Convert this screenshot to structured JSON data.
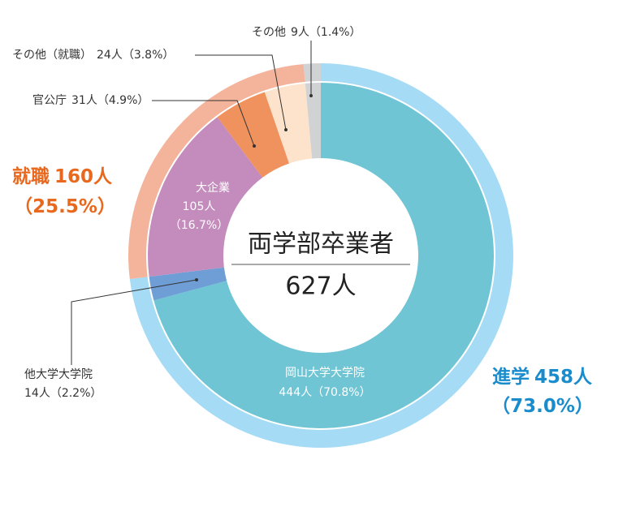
{
  "chart_data": {
    "type": "double-donut",
    "center_title": "両学部卒業者",
    "center_label": "627人",
    "outer": {
      "names": [
        "進学",
        "就職",
        "その他"
      ],
      "values": [
        458,
        160,
        9
      ],
      "value_labels": [
        "458人",
        "160人",
        "9人"
      ],
      "percents": [
        73.0,
        25.5,
        1.4
      ],
      "percent_labels": [
        "（73.0%）",
        "（25.5%）",
        "（1.4%）"
      ],
      "colors": [
        "#a6dbf5",
        "#f4b49c",
        "#d0d2d4"
      ]
    },
    "inner": {
      "names": [
        "岡山大学大学院",
        "他大学大学院",
        "大企業",
        "官公庁",
        "その他（就職）",
        "その他"
      ],
      "values": [
        444,
        14,
        105,
        31,
        24,
        9
      ],
      "value_labels": [
        "444人",
        "14人",
        "105人",
        "31人",
        "24人",
        "9人"
      ],
      "percents": [
        70.8,
        2.2,
        16.7,
        4.9,
        3.8,
        1.4
      ],
      "percent_labels": [
        "（70.8%）",
        "（2.2%）",
        "（16.7%）",
        "（4.9%）",
        "（3.8%）",
        "（1.4%）"
      ],
      "colors": [
        "#6fc5d3",
        "#6f9ed6",
        "#c48bbd",
        "#f0925e",
        "#fde3cc",
        "#d0d2d4"
      ]
    }
  }
}
